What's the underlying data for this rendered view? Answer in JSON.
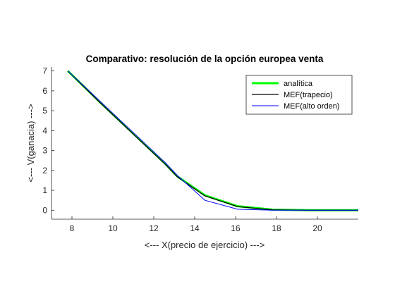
{
  "chart_data": {
    "type": "line",
    "title": "Comparativo: resolución de la opción europea venta",
    "xlabel": "<--- X(precio de ejercicio) --->",
    "ylabel": "<--- V(ganacia) --->",
    "xlim": [
      7,
      22
    ],
    "ylim": [
      -0.45,
      7.2
    ],
    "xticks": [
      8,
      10,
      12,
      14,
      16,
      18,
      20
    ],
    "yticks": [
      0,
      1,
      2,
      3,
      4,
      5,
      6,
      7
    ],
    "grid": false,
    "legend_position": "top-right",
    "series": [
      {
        "name": "analítica",
        "color": "#00ff00",
        "x": [
          7.8,
          9.4,
          11.0,
          12.55,
          13.15,
          14.5,
          16.1,
          17.8,
          19.6,
          22.0
        ],
        "y": [
          7.0,
          5.4,
          3.85,
          2.35,
          1.7,
          0.75,
          0.2,
          0.03,
          0.0,
          0.0
        ]
      },
      {
        "name": "MEF(trapecio)",
        "color": "#000000",
        "x": [
          7.8,
          9.4,
          11.0,
          12.55,
          13.15,
          14.5,
          16.1,
          17.8,
          19.6,
          22.0
        ],
        "y": [
          7.0,
          5.38,
          3.82,
          2.32,
          1.68,
          0.72,
          0.18,
          0.02,
          0.0,
          0.0
        ]
      },
      {
        "name": "MEF(alto orden)",
        "color": "#0000ff",
        "x": [
          7.8,
          9.4,
          11.0,
          12.55,
          13.15,
          14.5,
          16.1,
          17.8,
          19.6,
          22.0
        ],
        "y": [
          7.0,
          5.45,
          3.9,
          2.4,
          1.75,
          0.5,
          0.05,
          0.0,
          0.0,
          0.0
        ]
      }
    ]
  }
}
